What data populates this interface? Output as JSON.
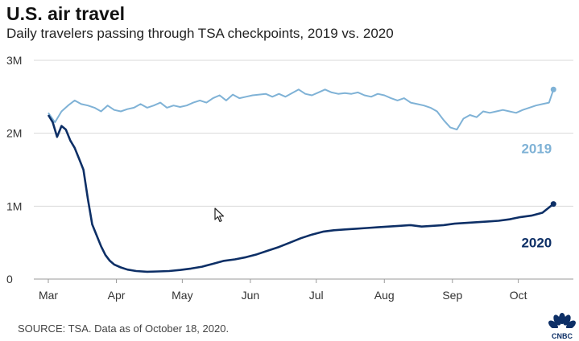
{
  "header": {
    "title": "U.S. air travel",
    "subtitle": "Daily travelers passing through TSA checkpoints, 2019 vs. 2020"
  },
  "footer": {
    "source": "SOURCE: TSA. Data as of October 18, 2020.",
    "logo_text": "CNBC"
  },
  "colors": {
    "series_2019": "#7fb2d6",
    "series_2020": "#0d2f66",
    "grid": "#d9d9d9"
  },
  "chart_data": {
    "type": "line",
    "title": "U.S. air travel",
    "subtitle": "Daily travelers passing through TSA checkpoints, 2019 vs. 2020",
    "xlabel": "",
    "ylabel": "",
    "x_ticks": [
      "Mar",
      "Apr",
      "May",
      "Jun",
      "Jul",
      "Aug",
      "Sep",
      "Oct"
    ],
    "x_tick_days": [
      0,
      31,
      61,
      92,
      122,
      153,
      184,
      214
    ],
    "xlim": [
      0,
      231
    ],
    "y_ticks": [
      "0",
      "1M",
      "2M",
      "3M"
    ],
    "y_tick_values": [
      0,
      1000000,
      2000000,
      3000000
    ],
    "ylim": [
      0,
      3000000
    ],
    "grid": "horizontal",
    "x_unit": "day of year counted from March 1",
    "series": [
      {
        "name": "2019",
        "color": "#7fb2d6",
        "points": [
          [
            0,
            2280000
          ],
          [
            3,
            2150000
          ],
          [
            6,
            2300000
          ],
          [
            9,
            2380000
          ],
          [
            12,
            2450000
          ],
          [
            15,
            2400000
          ],
          [
            18,
            2380000
          ],
          [
            21,
            2350000
          ],
          [
            24,
            2300000
          ],
          [
            27,
            2380000
          ],
          [
            30,
            2320000
          ],
          [
            33,
            2300000
          ],
          [
            36,
            2330000
          ],
          [
            39,
            2350000
          ],
          [
            42,
            2400000
          ],
          [
            45,
            2350000
          ],
          [
            48,
            2380000
          ],
          [
            51,
            2420000
          ],
          [
            54,
            2350000
          ],
          [
            57,
            2380000
          ],
          [
            60,
            2360000
          ],
          [
            63,
            2380000
          ],
          [
            66,
            2420000
          ],
          [
            69,
            2450000
          ],
          [
            72,
            2420000
          ],
          [
            75,
            2480000
          ],
          [
            78,
            2520000
          ],
          [
            81,
            2450000
          ],
          [
            84,
            2530000
          ],
          [
            87,
            2480000
          ],
          [
            90,
            2500000
          ],
          [
            93,
            2520000
          ],
          [
            96,
            2530000
          ],
          [
            99,
            2540000
          ],
          [
            102,
            2500000
          ],
          [
            105,
            2540000
          ],
          [
            108,
            2500000
          ],
          [
            111,
            2550000
          ],
          [
            114,
            2600000
          ],
          [
            117,
            2540000
          ],
          [
            120,
            2520000
          ],
          [
            123,
            2560000
          ],
          [
            126,
            2600000
          ],
          [
            129,
            2560000
          ],
          [
            132,
            2540000
          ],
          [
            135,
            2550000
          ],
          [
            138,
            2540000
          ],
          [
            141,
            2560000
          ],
          [
            144,
            2520000
          ],
          [
            147,
            2500000
          ],
          [
            150,
            2540000
          ],
          [
            153,
            2520000
          ],
          [
            156,
            2480000
          ],
          [
            159,
            2450000
          ],
          [
            162,
            2480000
          ],
          [
            165,
            2420000
          ],
          [
            168,
            2400000
          ],
          [
            171,
            2380000
          ],
          [
            174,
            2350000
          ],
          [
            177,
            2300000
          ],
          [
            180,
            2180000
          ],
          [
            183,
            2080000
          ],
          [
            186,
            2050000
          ],
          [
            189,
            2200000
          ],
          [
            192,
            2250000
          ],
          [
            195,
            2220000
          ],
          [
            198,
            2300000
          ],
          [
            201,
            2280000
          ],
          [
            204,
            2300000
          ],
          [
            207,
            2320000
          ],
          [
            210,
            2300000
          ],
          [
            213,
            2280000
          ],
          [
            216,
            2320000
          ],
          [
            219,
            2350000
          ],
          [
            222,
            2380000
          ],
          [
            225,
            2400000
          ],
          [
            228,
            2420000
          ],
          [
            230,
            2600000
          ]
        ]
      },
      {
        "name": "2020",
        "color": "#0d2f66",
        "points": [
          [
            0,
            2250000
          ],
          [
            2,
            2150000
          ],
          [
            4,
            1950000
          ],
          [
            6,
            2100000
          ],
          [
            8,
            2050000
          ],
          [
            10,
            1900000
          ],
          [
            12,
            1800000
          ],
          [
            14,
            1650000
          ],
          [
            16,
            1500000
          ],
          [
            18,
            1100000
          ],
          [
            20,
            750000
          ],
          [
            22,
            600000
          ],
          [
            24,
            450000
          ],
          [
            26,
            330000
          ],
          [
            28,
            250000
          ],
          [
            30,
            200000
          ],
          [
            33,
            160000
          ],
          [
            36,
            130000
          ],
          [
            40,
            110000
          ],
          [
            45,
            100000
          ],
          [
            50,
            105000
          ],
          [
            55,
            110000
          ],
          [
            60,
            125000
          ],
          [
            65,
            145000
          ],
          [
            70,
            170000
          ],
          [
            75,
            210000
          ],
          [
            80,
            250000
          ],
          [
            85,
            270000
          ],
          [
            90,
            300000
          ],
          [
            95,
            340000
          ],
          [
            100,
            390000
          ],
          [
            105,
            440000
          ],
          [
            110,
            500000
          ],
          [
            115,
            560000
          ],
          [
            120,
            610000
          ],
          [
            125,
            650000
          ],
          [
            130,
            670000
          ],
          [
            135,
            680000
          ],
          [
            140,
            690000
          ],
          [
            145,
            700000
          ],
          [
            150,
            710000
          ],
          [
            155,
            720000
          ],
          [
            160,
            730000
          ],
          [
            165,
            740000
          ],
          [
            170,
            720000
          ],
          [
            175,
            730000
          ],
          [
            180,
            740000
          ],
          [
            185,
            760000
          ],
          [
            190,
            770000
          ],
          [
            195,
            780000
          ],
          [
            200,
            790000
          ],
          [
            205,
            800000
          ],
          [
            210,
            820000
          ],
          [
            215,
            850000
          ],
          [
            220,
            870000
          ],
          [
            225,
            910000
          ],
          [
            230,
            1030000
          ]
        ]
      }
    ]
  }
}
